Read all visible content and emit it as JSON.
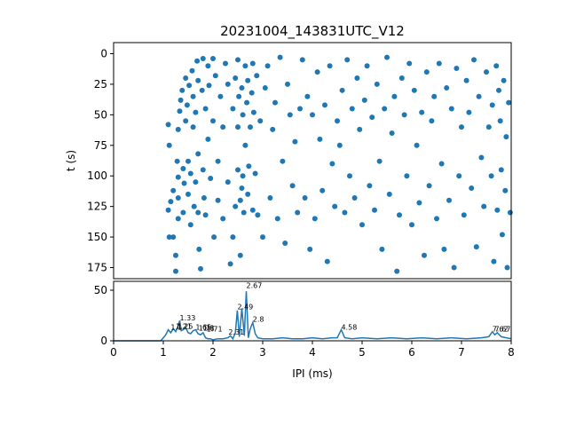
{
  "chart_data": [
    {
      "type": "scatter",
      "title": "20231004_143831UTC_V12",
      "ylabel": "t (s)",
      "xlim": [
        0,
        8
      ],
      "ylim": [
        180,
        -5
      ],
      "y_inverted": true,
      "yticks": [
        0,
        25,
        50,
        75,
        100,
        125,
        150,
        175
      ],
      "marker_color": "#1f77b4",
      "grid": false,
      "points": [
        [
          1.1,
          58
        ],
        [
          1.12,
          75
        ],
        [
          1.1,
          128
        ],
        [
          1.12,
          150
        ],
        [
          1.15,
          121
        ],
        [
          1.2,
          112
        ],
        [
          1.2,
          150
        ],
        [
          1.25,
          165
        ],
        [
          1.25,
          178
        ],
        [
          1.3,
          101
        ],
        [
          1.3,
          118
        ],
        [
          1.3,
          135
        ],
        [
          1.3,
          62
        ],
        [
          1.33,
          47
        ],
        [
          1.35,
          38
        ],
        [
          1.38,
          30
        ],
        [
          1.4,
          94
        ],
        [
          1.4,
          130
        ],
        [
          1.42,
          106
        ],
        [
          1.45,
          20
        ],
        [
          1.45,
          55
        ],
        [
          1.48,
          42
        ],
        [
          1.5,
          88
        ],
        [
          1.5,
          115
        ],
        [
          1.52,
          26
        ],
        [
          1.55,
          98
        ],
        [
          1.55,
          140
        ],
        [
          1.58,
          14
        ],
        [
          1.6,
          35
        ],
        [
          1.6,
          60
        ],
        [
          1.62,
          125
        ],
        [
          1.65,
          48
        ],
        [
          1.65,
          105
        ],
        [
          1.68,
          6
        ],
        [
          1.7,
          22
        ],
        [
          1.7,
          82
        ],
        [
          1.72,
          160
        ],
        [
          1.75,
          176
        ],
        [
          1.78,
          30
        ],
        [
          1.8,
          4
        ],
        [
          1.8,
          95
        ],
        [
          1.82,
          118
        ],
        [
          1.85,
          45
        ],
        [
          1.85,
          132
        ],
        [
          1.9,
          10
        ],
        [
          1.9,
          70
        ],
        [
          1.92,
          26
        ],
        [
          1.95,
          102
        ],
        [
          2.0,
          4
        ],
        [
          2.0,
          55
        ],
        [
          2.02,
          150
        ],
        [
          2.05,
          18
        ],
        [
          2.1,
          88
        ],
        [
          2.1,
          120
        ],
        [
          2.15,
          35
        ],
        [
          2.2,
          60
        ],
        [
          2.2,
          135
        ],
        [
          2.25,
          8
        ],
        [
          2.3,
          25
        ],
        [
          2.3,
          105
        ],
        [
          2.35,
          172
        ],
        [
          2.4,
          45
        ],
        [
          2.4,
          150
        ],
        [
          2.45,
          20
        ],
        [
          2.45,
          125
        ],
        [
          2.5,
          5
        ],
        [
          2.5,
          60
        ],
        [
          2.5,
          95
        ],
        [
          2.52,
          35
        ],
        [
          2.55,
          120
        ],
        [
          2.55,
          165
        ],
        [
          2.58,
          28
        ],
        [
          2.6,
          50
        ],
        [
          2.6,
          100
        ],
        [
          2.62,
          130
        ],
        [
          2.65,
          10
        ],
        [
          2.65,
          75
        ],
        [
          2.68,
          40
        ],
        [
          2.7,
          22
        ],
        [
          2.7,
          115
        ],
        [
          2.72,
          92
        ],
        [
          2.75,
          60
        ],
        [
          2.78,
          32
        ],
        [
          2.8,
          128
        ],
        [
          2.8,
          8
        ],
        [
          2.82,
          48
        ],
        [
          2.85,
          98
        ],
        [
          2.88,
          18
        ],
        [
          2.9,
          132
        ],
        [
          2.95,
          55
        ],
        [
          3.0,
          150
        ],
        [
          3.05,
          28
        ],
        [
          3.1,
          10
        ],
        [
          3.15,
          118
        ],
        [
          3.2,
          62
        ],
        [
          3.25,
          40
        ],
        [
          3.3,
          135
        ],
        [
          3.35,
          3
        ],
        [
          3.4,
          88
        ],
        [
          3.45,
          155
        ],
        [
          3.5,
          25
        ],
        [
          3.55,
          50
        ],
        [
          3.6,
          108
        ],
        [
          3.65,
          72
        ],
        [
          3.7,
          130
        ],
        [
          3.75,
          45
        ],
        [
          3.8,
          5
        ],
        [
          3.85,
          118
        ],
        [
          3.9,
          35
        ],
        [
          3.95,
          160
        ],
        [
          4.0,
          50
        ],
        [
          4.05,
          135
        ],
        [
          4.1,
          15
        ],
        [
          4.15,
          70
        ],
        [
          4.2,
          112
        ],
        [
          4.25,
          42
        ],
        [
          4.3,
          170
        ],
        [
          4.35,
          10
        ],
        [
          4.4,
          90
        ],
        [
          4.45,
          125
        ],
        [
          4.5,
          55
        ],
        [
          4.55,
          75
        ],
        [
          4.6,
          30
        ],
        [
          4.65,
          130
        ],
        [
          4.7,
          5
        ],
        [
          4.75,
          100
        ],
        [
          4.8,
          45
        ],
        [
          4.85,
          118
        ],
        [
          4.9,
          20
        ],
        [
          4.95,
          62
        ],
        [
          5.0,
          140
        ],
        [
          5.05,
          38
        ],
        [
          5.1,
          10
        ],
        [
          5.15,
          108
        ],
        [
          5.2,
          52
        ],
        [
          5.25,
          128
        ],
        [
          5.3,
          25
        ],
        [
          5.35,
          88
        ],
        [
          5.4,
          160
        ],
        [
          5.45,
          45
        ],
        [
          5.5,
          3
        ],
        [
          5.55,
          115
        ],
        [
          5.6,
          65
        ],
        [
          5.65,
          35
        ],
        [
          5.7,
          178
        ],
        [
          5.75,
          132
        ],
        [
          5.8,
          20
        ],
        [
          5.85,
          50
        ],
        [
          5.9,
          100
        ],
        [
          5.95,
          8
        ],
        [
          6.0,
          140
        ],
        [
          6.05,
          30
        ],
        [
          6.1,
          75
        ],
        [
          6.15,
          122
        ],
        [
          6.2,
          48
        ],
        [
          6.25,
          165
        ],
        [
          6.3,
          15
        ],
        [
          6.35,
          108
        ],
        [
          6.4,
          55
        ],
        [
          6.45,
          35
        ],
        [
          6.5,
          135
        ],
        [
          6.55,
          8
        ],
        [
          6.6,
          90
        ],
        [
          6.65,
          160
        ],
        [
          6.7,
          28
        ],
        [
          6.75,
          120
        ],
        [
          6.8,
          45
        ],
        [
          6.85,
          175
        ],
        [
          6.9,
          12
        ],
        [
          6.95,
          100
        ],
        [
          7.0,
          60
        ],
        [
          7.05,
          132
        ],
        [
          7.1,
          22
        ],
        [
          7.15,
          48
        ],
        [
          7.2,
          110
        ],
        [
          7.25,
          5
        ],
        [
          7.3,
          158
        ],
        [
          7.35,
          35
        ],
        [
          7.4,
          85
        ],
        [
          7.45,
          125
        ],
        [
          7.5,
          15
        ],
        [
          7.55,
          60
        ],
        [
          7.6,
          100
        ],
        [
          7.62,
          42
        ],
        [
          7.65,
          170
        ],
        [
          7.7,
          10
        ],
        [
          7.72,
          128
        ],
        [
          7.75,
          30
        ],
        [
          7.78,
          55
        ],
        [
          7.8,
          95
        ],
        [
          7.82,
          148
        ],
        [
          7.85,
          22
        ],
        [
          7.88,
          112
        ],
        [
          7.9,
          68
        ],
        [
          7.92,
          175
        ],
        [
          7.95,
          40
        ],
        [
          7.98,
          130
        ],
        [
          1.28,
          88
        ],
        [
          2.58,
          110
        ],
        [
          1.7,
          130
        ]
      ]
    },
    {
      "type": "line",
      "xlabel": "IPI (ms)",
      "xlim": [
        0,
        8
      ],
      "ylim": [
        0,
        60
      ],
      "xticks": [
        0,
        1,
        2,
        3,
        4,
        5,
        6,
        7,
        8
      ],
      "yticks": [
        0,
        50
      ],
      "line_color": "#1f77b4",
      "grid": false,
      "series": [
        {
          "x": [
            0,
            0.5,
            0.95,
            1.0,
            1.05,
            1.1,
            1.15,
            1.2,
            1.25,
            1.3,
            1.33,
            1.36,
            1.4,
            1.45,
            1.5,
            1.55,
            1.6,
            1.65,
            1.7,
            1.75,
            1.8,
            1.85,
            1.9,
            1.95,
            2.0,
            2.1,
            2.2,
            2.3,
            2.35,
            2.4,
            2.45,
            2.49,
            2.53,
            2.58,
            2.63,
            2.67,
            2.71,
            2.75,
            2.8,
            2.85,
            2.9,
            3.0,
            3.2,
            3.4,
            3.6,
            3.8,
            4.0,
            4.2,
            4.4,
            4.5,
            4.58,
            4.65,
            4.8,
            5.0,
            5.3,
            5.6,
            5.9,
            6.2,
            6.5,
            6.8,
            7.1,
            7.4,
            7.55,
            7.62,
            7.67,
            7.72,
            7.8,
            7.9,
            8.0
          ],
          "y": [
            0,
            0,
            0,
            3,
            6,
            11,
            8,
            12,
            9,
            15,
            20,
            10,
            11,
            13,
            8,
            7,
            10,
            11,
            7,
            6,
            8,
            3,
            2,
            2,
            1,
            2,
            2,
            3,
            5,
            2,
            8,
            30,
            4,
            32,
            5,
            49,
            3,
            12,
            18,
            7,
            3,
            2,
            2,
            3,
            2,
            2,
            3,
            2,
            3,
            3,
            11,
            3,
            2,
            3,
            2,
            3,
            2,
            3,
            2,
            3,
            2,
            3,
            4,
            9,
            6,
            8,
            4,
            3,
            2
          ]
        }
      ],
      "annotations": [
        {
          "x": 1.15,
          "y": 11,
          "text": "1.1"
        },
        {
          "x": 1.33,
          "y": 20,
          "text": "1.33"
        },
        {
          "x": 1.25,
          "y": 12,
          "text": "1.21"
        },
        {
          "x": 1.28,
          "y": 12,
          "text": "1.25"
        },
        {
          "x": 1.65,
          "y": 11,
          "text": "1.65"
        },
        {
          "x": 1.71,
          "y": 10,
          "text": "1.71"
        },
        {
          "x": 1.8,
          "y": 10,
          "text": "1.8"
        },
        {
          "x": 1.87,
          "y": 9,
          "text": "1.71"
        },
        {
          "x": 2.49,
          "y": 31,
          "text": "2.49"
        },
        {
          "x": 2.31,
          "y": 6,
          "text": "2.31"
        },
        {
          "x": 2.67,
          "y": 52,
          "text": "2.67"
        },
        {
          "x": 2.8,
          "y": 19,
          "text": "2.8"
        },
        {
          "x": 4.58,
          "y": 11,
          "text": "4.58"
        },
        {
          "x": 7.62,
          "y": 9,
          "text": "7.62"
        },
        {
          "x": 7.67,
          "y": 9,
          "text": "7.67"
        }
      ]
    }
  ]
}
